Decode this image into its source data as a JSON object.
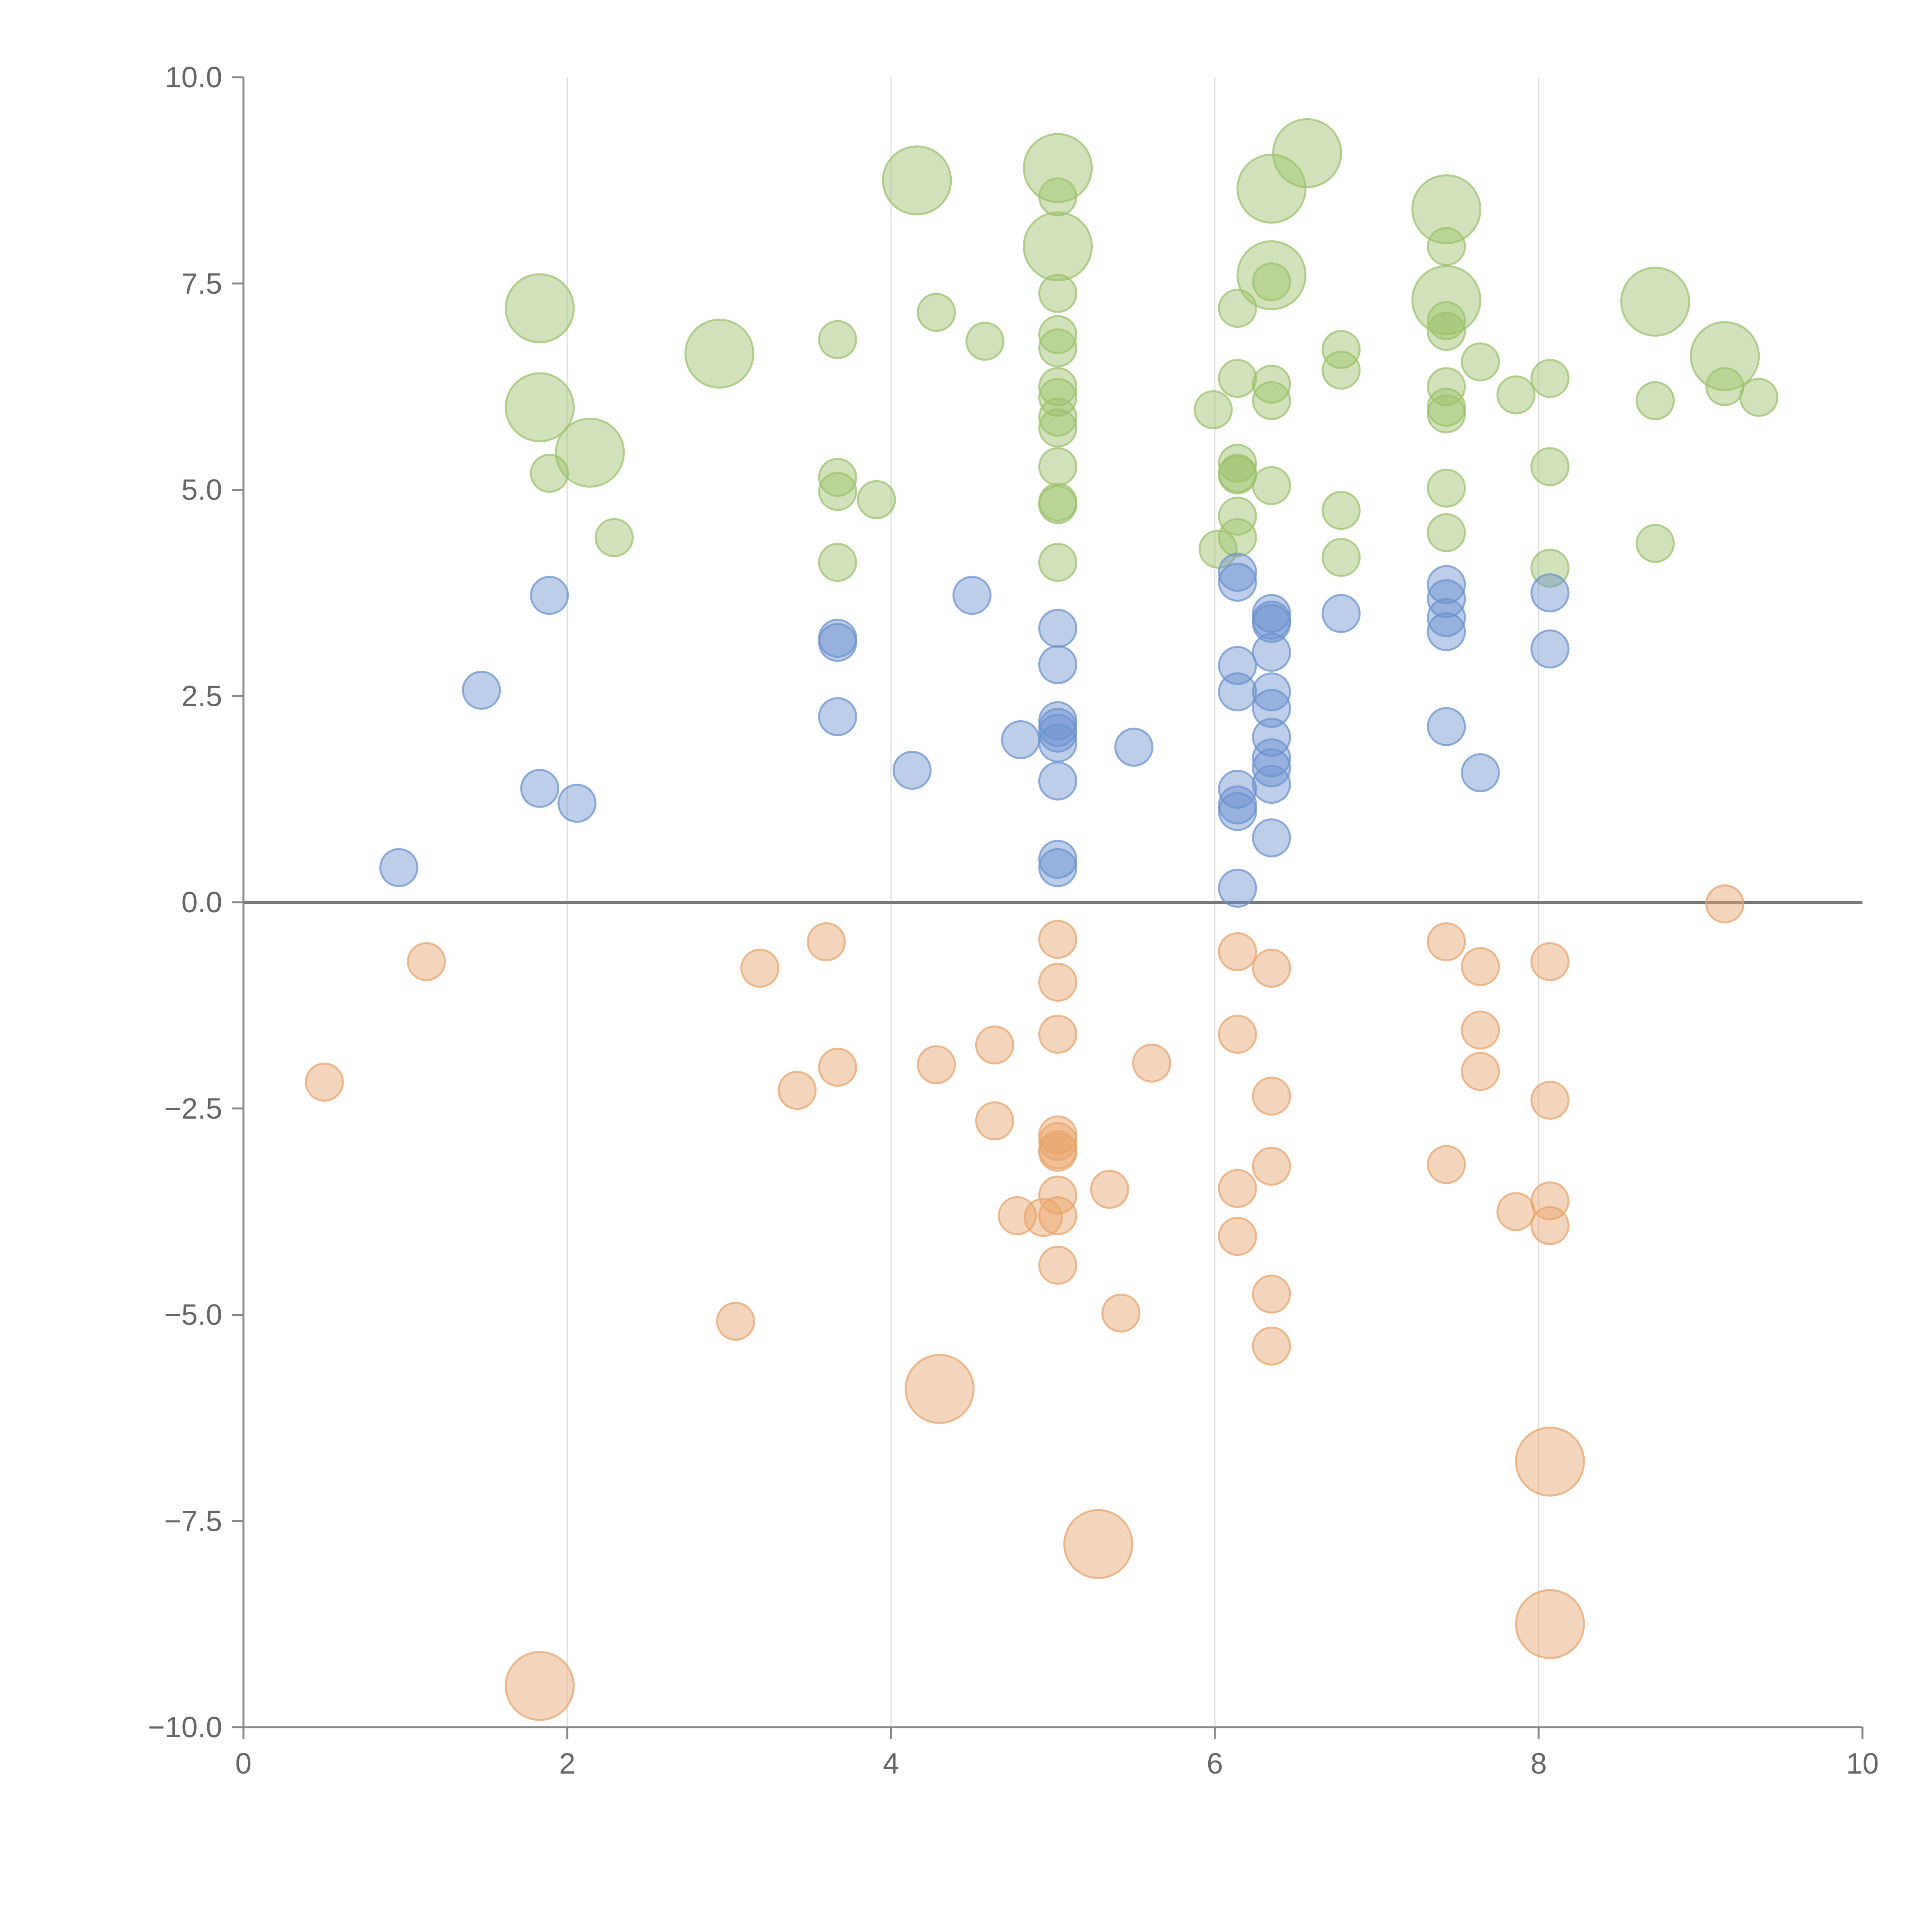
{
  "chart_data": {
    "type": "scatter",
    "title": "",
    "xlabel": "",
    "ylabel": "",
    "xlim": [
      0,
      10
    ],
    "ylim": [
      -10,
      10
    ],
    "x_ticks": [
      0,
      2,
      4,
      6,
      8,
      10
    ],
    "x_tick_labels": [
      "0",
      "2",
      "4",
      "6",
      "8",
      "10"
    ],
    "y_ticks": [
      10,
      7.5,
      5,
      2.5,
      0,
      -2.5,
      -5,
      -7.5,
      -10
    ],
    "y_tick_labels": [
      "10.0",
      "7.5",
      "5.0",
      "2.5",
      "0.0",
      "−2.5",
      "−5.0",
      "−7.5",
      "−10.0"
    ],
    "grid": "vertical",
    "zero_line": true,
    "legend": "none",
    "bubble_sizes": "small and large markers",
    "series": [
      {
        "color": "#9cc16b",
        "points": [
          {
            "x": 1.83,
            "y": 7.2,
            "size": 2
          },
          {
            "x": 1.83,
            "y": 6.0,
            "size": 2
          },
          {
            "x": 1.89,
            "y": 5.2,
            "size": 1
          },
          {
            "x": 2.14,
            "y": 5.45,
            "size": 2
          },
          {
            "x": 2.29,
            "y": 4.42,
            "size": 1
          },
          {
            "x": 2.94,
            "y": 6.65,
            "size": 2
          },
          {
            "x": 3.67,
            "y": 6.82,
            "size": 1
          },
          {
            "x": 3.67,
            "y": 5.15,
            "size": 1
          },
          {
            "x": 3.67,
            "y": 4.98,
            "size": 1
          },
          {
            "x": 3.67,
            "y": 4.12,
            "size": 1
          },
          {
            "x": 3.91,
            "y": 4.88,
            "size": 1
          },
          {
            "x": 4.16,
            "y": 8.75,
            "size": 2
          },
          {
            "x": 4.28,
            "y": 7.15,
            "size": 1
          },
          {
            "x": 4.58,
            "y": 6.8,
            "size": 1
          },
          {
            "x": 5.03,
            "y": 8.9,
            "size": 2
          },
          {
            "x": 5.03,
            "y": 8.55,
            "size": 1
          },
          {
            "x": 5.03,
            "y": 7.95,
            "size": 2
          },
          {
            "x": 5.03,
            "y": 7.38,
            "size": 1
          },
          {
            "x": 5.03,
            "y": 6.88,
            "size": 1
          },
          {
            "x": 5.03,
            "y": 6.72,
            "size": 1
          },
          {
            "x": 5.03,
            "y": 6.25,
            "size": 1
          },
          {
            "x": 5.03,
            "y": 6.12,
            "size": 1
          },
          {
            "x": 5.03,
            "y": 5.88,
            "size": 1
          },
          {
            "x": 5.03,
            "y": 5.75,
            "size": 1
          },
          {
            "x": 5.03,
            "y": 5.28,
            "size": 1
          },
          {
            "x": 5.03,
            "y": 4.85,
            "size": 1
          },
          {
            "x": 5.03,
            "y": 4.82,
            "size": 1
          },
          {
            "x": 5.03,
            "y": 4.12,
            "size": 1
          },
          {
            "x": 5.99,
            "y": 5.97,
            "size": 1
          },
          {
            "x": 6.02,
            "y": 4.28,
            "size": 1
          },
          {
            "x": 6.14,
            "y": 7.2,
            "size": 1
          },
          {
            "x": 6.14,
            "y": 6.35,
            "size": 1
          },
          {
            "x": 6.14,
            "y": 5.32,
            "size": 1
          },
          {
            "x": 6.14,
            "y": 5.2,
            "size": 1
          },
          {
            "x": 6.14,
            "y": 5.18,
            "size": 1
          },
          {
            "x": 6.14,
            "y": 4.68,
            "size": 1
          },
          {
            "x": 6.14,
            "y": 4.42,
            "size": 1
          },
          {
            "x": 6.35,
            "y": 8.65,
            "size": 2
          },
          {
            "x": 6.35,
            "y": 7.6,
            "size": 2
          },
          {
            "x": 6.35,
            "y": 7.52,
            "size": 1
          },
          {
            "x": 6.35,
            "y": 6.28,
            "size": 1
          },
          {
            "x": 6.35,
            "y": 6.08,
            "size": 1
          },
          {
            "x": 6.35,
            "y": 5.05,
            "size": 1
          },
          {
            "x": 6.57,
            "y": 9.08,
            "size": 2
          },
          {
            "x": 6.78,
            "y": 6.7,
            "size": 1
          },
          {
            "x": 6.78,
            "y": 6.45,
            "size": 1
          },
          {
            "x": 6.78,
            "y": 4.75,
            "size": 1
          },
          {
            "x": 6.78,
            "y": 4.18,
            "size": 1
          },
          {
            "x": 7.43,
            "y": 8.4,
            "size": 2
          },
          {
            "x": 7.43,
            "y": 7.95,
            "size": 1
          },
          {
            "x": 7.43,
            "y": 7.3,
            "size": 2
          },
          {
            "x": 7.43,
            "y": 7.05,
            "size": 1
          },
          {
            "x": 7.43,
            "y": 6.92,
            "size": 1
          },
          {
            "x": 7.43,
            "y": 6.25,
            "size": 1
          },
          {
            "x": 7.43,
            "y": 6.0,
            "size": 1
          },
          {
            "x": 7.43,
            "y": 5.92,
            "size": 1
          },
          {
            "x": 7.43,
            "y": 5.02,
            "size": 1
          },
          {
            "x": 7.43,
            "y": 4.48,
            "size": 1
          },
          {
            "x": 7.64,
            "y": 6.55,
            "size": 1
          },
          {
            "x": 7.86,
            "y": 6.15,
            "size": 1
          },
          {
            "x": 8.07,
            "y": 6.35,
            "size": 1
          },
          {
            "x": 8.07,
            "y": 5.28,
            "size": 1
          },
          {
            "x": 8.07,
            "y": 4.05,
            "size": 1
          },
          {
            "x": 8.72,
            "y": 7.28,
            "size": 2
          },
          {
            "x": 8.72,
            "y": 6.08,
            "size": 1
          },
          {
            "x": 8.72,
            "y": 4.35,
            "size": 1
          },
          {
            "x": 9.15,
            "y": 6.62,
            "size": 2
          },
          {
            "x": 9.15,
            "y": 6.25,
            "size": 1
          },
          {
            "x": 9.36,
            "y": 6.12,
            "size": 1
          }
        ]
      },
      {
        "color": "#6b93cf",
        "points": [
          {
            "x": 0.96,
            "y": 0.42,
            "size": 1
          },
          {
            "x": 1.47,
            "y": 2.57,
            "size": 1
          },
          {
            "x": 1.83,
            "y": 1.38,
            "size": 1
          },
          {
            "x": 1.89,
            "y": 3.72,
            "size": 1
          },
          {
            "x": 2.06,
            "y": 1.2,
            "size": 1
          },
          {
            "x": 3.67,
            "y": 3.2,
            "size": 1
          },
          {
            "x": 3.67,
            "y": 3.15,
            "size": 1
          },
          {
            "x": 3.67,
            "y": 2.25,
            "size": 1
          },
          {
            "x": 4.13,
            "y": 1.6,
            "size": 1
          },
          {
            "x": 4.5,
            "y": 3.72,
            "size": 1
          },
          {
            "x": 4.8,
            "y": 1.97,
            "size": 1
          },
          {
            "x": 5.03,
            "y": 3.32,
            "size": 1
          },
          {
            "x": 5.03,
            "y": 2.88,
            "size": 1
          },
          {
            "x": 5.03,
            "y": 2.2,
            "size": 1
          },
          {
            "x": 5.03,
            "y": 2.12,
            "size": 1
          },
          {
            "x": 5.03,
            "y": 2.05,
            "size": 1
          },
          {
            "x": 5.03,
            "y": 1.93,
            "size": 1
          },
          {
            "x": 5.03,
            "y": 1.47,
            "size": 1
          },
          {
            "x": 5.03,
            "y": 0.52,
            "size": 1
          },
          {
            "x": 5.03,
            "y": 0.42,
            "size": 1
          },
          {
            "x": 5.5,
            "y": 1.88,
            "size": 1
          },
          {
            "x": 6.14,
            "y": 4.0,
            "size": 1
          },
          {
            "x": 6.14,
            "y": 3.88,
            "size": 1
          },
          {
            "x": 6.14,
            "y": 2.87,
            "size": 1
          },
          {
            "x": 6.14,
            "y": 2.55,
            "size": 1
          },
          {
            "x": 6.14,
            "y": 1.37,
            "size": 1
          },
          {
            "x": 6.14,
            "y": 1.18,
            "size": 1
          },
          {
            "x": 6.14,
            "y": 1.1,
            "size": 1
          },
          {
            "x": 6.14,
            "y": 0.17,
            "size": 1
          },
          {
            "x": 6.35,
            "y": 3.5,
            "size": 1
          },
          {
            "x": 6.35,
            "y": 3.42,
            "size": 1
          },
          {
            "x": 6.35,
            "y": 3.38,
            "size": 1
          },
          {
            "x": 6.35,
            "y": 3.03,
            "size": 1
          },
          {
            "x": 6.35,
            "y": 2.55,
            "size": 1
          },
          {
            "x": 6.35,
            "y": 2.35,
            "size": 1
          },
          {
            "x": 6.35,
            "y": 2.0,
            "size": 1
          },
          {
            "x": 6.35,
            "y": 1.75,
            "size": 1
          },
          {
            "x": 6.35,
            "y": 1.63,
            "size": 1
          },
          {
            "x": 6.35,
            "y": 1.43,
            "size": 1
          },
          {
            "x": 6.35,
            "y": 0.78,
            "size": 1
          },
          {
            "x": 6.78,
            "y": 3.5,
            "size": 1
          },
          {
            "x": 7.43,
            "y": 3.85,
            "size": 1
          },
          {
            "x": 7.43,
            "y": 3.68,
            "size": 1
          },
          {
            "x": 7.43,
            "y": 3.45,
            "size": 1
          },
          {
            "x": 7.43,
            "y": 3.28,
            "size": 1
          },
          {
            "x": 7.43,
            "y": 2.13,
            "size": 1
          },
          {
            "x": 7.64,
            "y": 1.57,
            "size": 1
          },
          {
            "x": 8.07,
            "y": 3.75,
            "size": 1
          },
          {
            "x": 8.07,
            "y": 3.07,
            "size": 1
          }
        ]
      },
      {
        "color": "#e8a46a",
        "points": [
          {
            "x": 0.5,
            "y": -2.18,
            "size": 1
          },
          {
            "x": 1.13,
            "y": -0.72,
            "size": 1
          },
          {
            "x": 1.83,
            "y": -9.5,
            "size": 2
          },
          {
            "x": 3.04,
            "y": -5.08,
            "size": 1
          },
          {
            "x": 3.19,
            "y": -0.8,
            "size": 1
          },
          {
            "x": 3.42,
            "y": -2.28,
            "size": 1
          },
          {
            "x": 3.6,
            "y": -0.48,
            "size": 1
          },
          {
            "x": 3.67,
            "y": -2.0,
            "size": 1
          },
          {
            "x": 4.28,
            "y": -1.97,
            "size": 1
          },
          {
            "x": 4.3,
            "y": -5.9,
            "size": 2
          },
          {
            "x": 4.64,
            "y": -1.73,
            "size": 1
          },
          {
            "x": 4.64,
            "y": -2.65,
            "size": 1
          },
          {
            "x": 4.78,
            "y": -3.8,
            "size": 1
          },
          {
            "x": 4.94,
            "y": -3.82,
            "size": 1
          },
          {
            "x": 5.03,
            "y": -0.45,
            "size": 1
          },
          {
            "x": 5.03,
            "y": -0.97,
            "size": 1
          },
          {
            "x": 5.03,
            "y": -1.6,
            "size": 1
          },
          {
            "x": 5.03,
            "y": -2.82,
            "size": 1
          },
          {
            "x": 5.03,
            "y": -2.9,
            "size": 1
          },
          {
            "x": 5.03,
            "y": -3.0,
            "size": 1
          },
          {
            "x": 5.03,
            "y": -3.03,
            "size": 1
          },
          {
            "x": 5.03,
            "y": -3.55,
            "size": 1
          },
          {
            "x": 5.03,
            "y": -3.8,
            "size": 1
          },
          {
            "x": 5.03,
            "y": -4.4,
            "size": 1
          },
          {
            "x": 5.28,
            "y": -7.78,
            "size": 2
          },
          {
            "x": 5.35,
            "y": -3.48,
            "size": 1
          },
          {
            "x": 5.42,
            "y": -4.98,
            "size": 1
          },
          {
            "x": 5.61,
            "y": -1.95,
            "size": 1
          },
          {
            "x": 6.14,
            "y": -0.6,
            "size": 1
          },
          {
            "x": 6.14,
            "y": -1.6,
            "size": 1
          },
          {
            "x": 6.14,
            "y": -3.47,
            "size": 1
          },
          {
            "x": 6.14,
            "y": -4.05,
            "size": 1
          },
          {
            "x": 6.35,
            "y": -0.8,
            "size": 1
          },
          {
            "x": 6.35,
            "y": -2.35,
            "size": 1
          },
          {
            "x": 6.35,
            "y": -3.2,
            "size": 1
          },
          {
            "x": 6.35,
            "y": -4.75,
            "size": 1
          },
          {
            "x": 6.35,
            "y": -5.38,
            "size": 1
          },
          {
            "x": 7.43,
            "y": -0.48,
            "size": 1
          },
          {
            "x": 7.43,
            "y": -3.18,
            "size": 1
          },
          {
            "x": 7.64,
            "y": -0.78,
            "size": 1
          },
          {
            "x": 7.64,
            "y": -1.55,
            "size": 1
          },
          {
            "x": 7.64,
            "y": -2.05,
            "size": 1
          },
          {
            "x": 7.86,
            "y": -3.75,
            "size": 1
          },
          {
            "x": 8.07,
            "y": -0.72,
            "size": 1
          },
          {
            "x": 8.07,
            "y": -2.4,
            "size": 1
          },
          {
            "x": 8.07,
            "y": -3.62,
            "size": 1
          },
          {
            "x": 8.07,
            "y": -3.92,
            "size": 1
          },
          {
            "x": 8.07,
            "y": -6.78,
            "size": 2
          },
          {
            "x": 8.07,
            "y": -8.75,
            "size": 2
          },
          {
            "x": 9.15,
            "y": -0.02,
            "size": 1
          }
        ]
      }
    ]
  }
}
